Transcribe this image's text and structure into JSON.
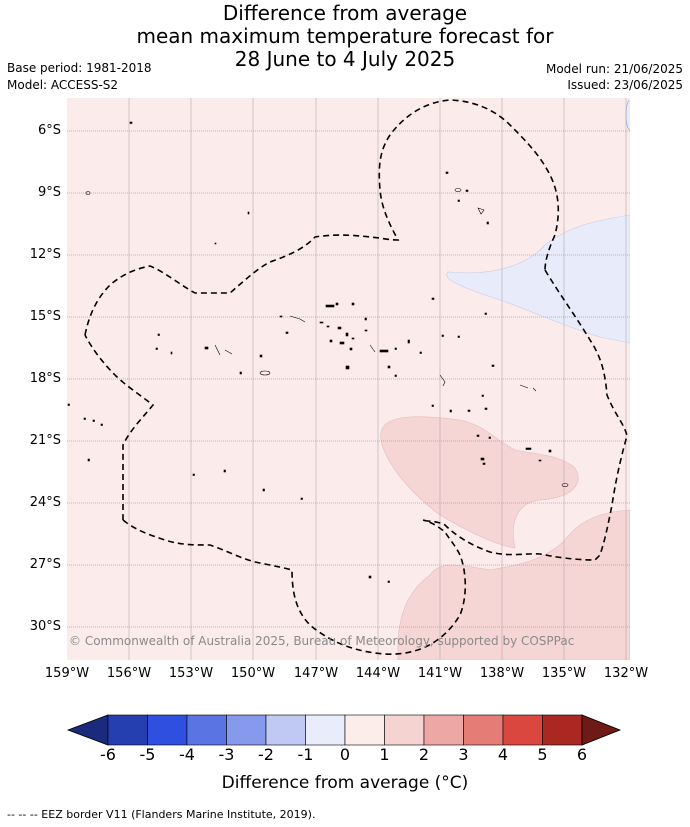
{
  "title": {
    "line1": "Difference from average",
    "line2": "mean maximum temperature forecast for",
    "line3": "28 June to 4 July 2025"
  },
  "meta": {
    "base_period": "Base period: 1981-2018",
    "model": "Model: ACCESS-S2",
    "model_run": "Model run: 21/06/2025",
    "issued": "Issued: 23/06/2025"
  },
  "map": {
    "lat_labels": [
      "6°S",
      "9°S",
      "12°S",
      "15°S",
      "18°S",
      "21°S",
      "24°S",
      "27°S",
      "30°S"
    ],
    "lon_labels": [
      "159°W",
      "156°W",
      "153°W",
      "150°W",
      "147°W",
      "144°W",
      "141°W",
      "138°W",
      "135°W",
      "132°W"
    ],
    "copyright": "© Commonwealth of Australia 2025, Bureau of Meteorology, supported by COSPPac",
    "colors": {
      "background_anomaly_0_1": "#fbebea",
      "anomaly_1_2": "#f5d6d5",
      "anomaly_m1_0": "#e8ebfa",
      "gridline": "#b0a0a8",
      "eez_border": "#000000"
    }
  },
  "colorbar": {
    "ticks": [
      "-6",
      "-5",
      "-4",
      "-3",
      "-2",
      "-1",
      "0",
      "1",
      "2",
      "3",
      "4",
      "5",
      "6"
    ],
    "colors": [
      "#1a2b7e",
      "#263fb0",
      "#2f4fe0",
      "#5a74e4",
      "#8799ec",
      "#c0c8f4",
      "#e9ecfb",
      "#fcecea",
      "#f4d3d1",
      "#eda8a5",
      "#e57d76",
      "#d9473f",
      "#aa2722",
      "#6f1a16"
    ],
    "label": "Difference from average (°C)"
  },
  "footnote": "-- -- -- EEZ border V11 (Flanders Marine Institute, 2019)."
}
